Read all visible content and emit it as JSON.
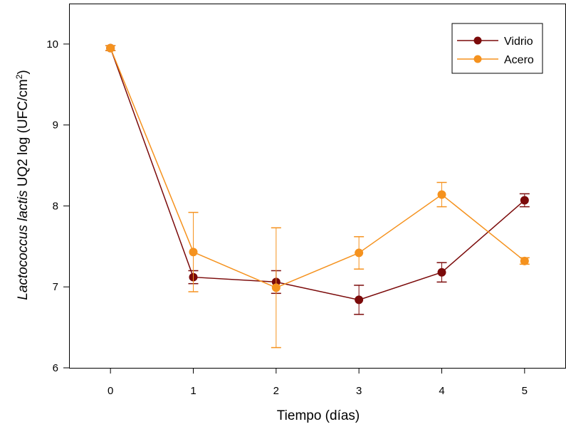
{
  "chart_data": {
    "type": "line",
    "title": "",
    "xlabel": "Tiempo (días)",
    "ylabel": {
      "italic": "Lactococcus lactis",
      "rest": " UQ2 log (UFC/cm",
      "sup": "2",
      "close": ")"
    },
    "x": [
      0,
      1,
      2,
      3,
      4,
      5
    ],
    "xlim": [
      -0.5,
      5.5
    ],
    "ylim": [
      6,
      10.5
    ],
    "xticks": [
      0,
      1,
      2,
      3,
      4,
      5
    ],
    "yticks": [
      6,
      7,
      8,
      9,
      10
    ],
    "grid": false,
    "legend_position": "top-right",
    "series": [
      {
        "name": "Vidrio",
        "color": "#7b0a0a",
        "values": [
          9.95,
          7.12,
          7.06,
          6.84,
          7.18,
          8.07
        ],
        "error": [
          0.03,
          0.08,
          0.14,
          0.18,
          0.12,
          0.08
        ]
      },
      {
        "name": "Acero",
        "color": "#f5921e",
        "values": [
          9.95,
          7.43,
          6.99,
          7.42,
          8.14,
          7.32
        ],
        "error": [
          0.03,
          0.49,
          0.74,
          0.2,
          0.15,
          0.04
        ]
      }
    ]
  }
}
